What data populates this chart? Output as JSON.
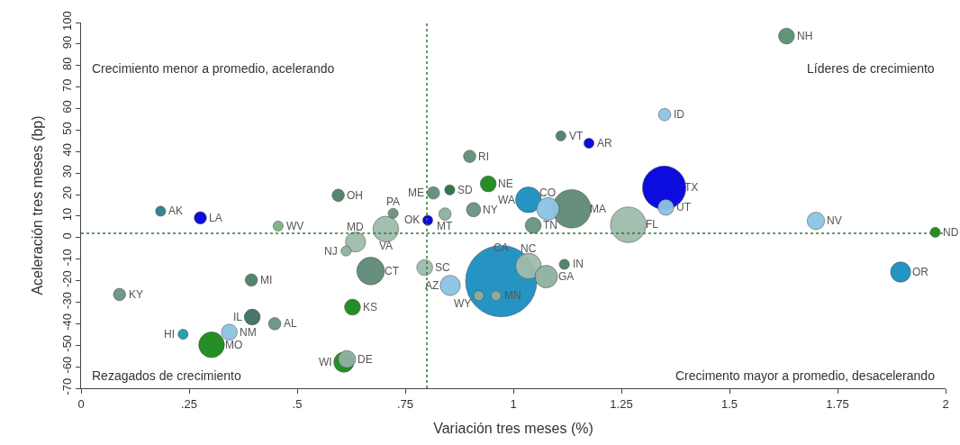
{
  "chart_data": {
    "type": "bubble",
    "xlabel": "Variación tres meses (%)",
    "ylabel": "Aceleración tres meses (bp)",
    "x": [
      1.632,
      1.35,
      1.11,
      1.175,
      0.899,
      0.942,
      0.815,
      0.853,
      0.908,
      0.842,
      0.802,
      1.035,
      1.08,
      1.135,
      1.349,
      1.353,
      1.046,
      1.266,
      1.7,
      1.976,
      1.896,
      1.118,
      1.035,
      1.076,
      0.972,
      0.854,
      0.795,
      0.67,
      0.635,
      0.613,
      0.705,
      0.722,
      0.456,
      0.595,
      0.184,
      0.276,
      0.394,
      0.089,
      0.628,
      0.396,
      0.448,
      0.343,
      0.236,
      0.302,
      0.615,
      0.608,
      0.92,
      0.96
    ],
    "values": [
      93.7,
      57.2,
      47.3,
      43.9,
      37.8,
      25.0,
      20.8,
      22.2,
      13.0,
      11.0,
      8.1,
      17.6,
      13.4,
      13.4,
      23.2,
      14.1,
      5.7,
      6.0,
      7.8,
      2.5,
      -16.0,
      -12.4,
      -13.2,
      -18.1,
      -20.2,
      -22.2,
      -13.9,
      -15.5,
      -2.0,
      -6.2,
      4.0,
      11.3,
      5.4,
      19.7,
      12.3,
      9.2,
      -19.7,
      -26.4,
      -32.3,
      -36.9,
      -40.0,
      -43.9,
      -44.9,
      -49.8,
      -56.5,
      -57.9,
      -27.0,
      -27.0
    ],
    "sizes": [
      0.05,
      0.03,
      0.02,
      0.02,
      0.03,
      0.05,
      0.03,
      0.02,
      0.04,
      0.03,
      0.02,
      0.13,
      0.1,
      0.29,
      0.37,
      0.05,
      0.05,
      0.25,
      0.06,
      0.02,
      0.08,
      0.02,
      0.13,
      0.1,
      1,
      0.08,
      0.05,
      0.15,
      0.08,
      0.02,
      0.13,
      0.02,
      0.02,
      0.03,
      0.02,
      0.03,
      0.03,
      0.03,
      0.05,
      0.05,
      0.03,
      0.05,
      0.02,
      0.13,
      0.06,
      0.08,
      0.02,
      0.02
    ],
    "colors": [
      "#5a9070",
      "#8cc4e3",
      "#4e7f66",
      "#0000dd",
      "#5f8f78",
      "#1a8a1a",
      "#5f8f78",
      "#2e6e40",
      "#6a9280",
      "#8fb0a0",
      "#0000dd",
      "#1b8fc0",
      "#8cc4e3",
      "#5f8a78",
      "#0000dd",
      "#8cc4e3",
      "#6a9280",
      "#9fbcab",
      "#8cc4e3",
      "#1a8a1a",
      "#1b8fc0",
      "#4e7f66",
      "#9fbcab",
      "#8fb0a0",
      "#1b8fc0",
      "#8cc4e3",
      "#9fbcab",
      "#5f8a78",
      "#9fbcab",
      "#8fb0a0",
      "#9fbcab",
      "#6a9280",
      "#7fb07f",
      "#4e7f66",
      "#2a7f8a",
      "#0000dd",
      "#4e7f66",
      "#6a9280",
      "#1a8a1a",
      "#3f6e66",
      "#6a9280",
      "#8cc4e3",
      "#1a9aaa",
      "#1a8a1a",
      "#8fb0a0",
      "#1a8a1a",
      "#8fb0a0",
      "#8fb0a0"
    ],
    "annotations": [
      "Crecimiento menor a promedio, acelerando",
      "Líderes de crecimiento",
      "Rezagados de crecimiento",
      "Crecimento mayor a promedio, desacelerando",
      {
        "text": "NH",
        "x": 1.632,
        "y": 93.7
      },
      {
        "text": "ID",
        "x": 1.35,
        "y": 57.2
      },
      {
        "text": "VT",
        "x": 1.11,
        "y": 47.3
      },
      {
        "text": "AR",
        "x": 1.175,
        "y": 43.9
      },
      {
        "text": "RI",
        "x": 0.899,
        "y": 37.8
      },
      {
        "text": "NE",
        "x": 0.942,
        "y": 25.0
      },
      {
        "text": "ME",
        "x": 0.815,
        "y": 20.8
      },
      {
        "text": "SD",
        "x": 0.853,
        "y": 22.2
      },
      {
        "text": "NY",
        "x": 0.908,
        "y": 13.0
      },
      {
        "text": "MT",
        "x": 0.842,
        "y": 11.0
      },
      {
        "text": "OK",
        "x": 0.802,
        "y": 8.1
      },
      {
        "text": "WA",
        "x": 1.035,
        "y": 17.6
      },
      {
        "text": "CO",
        "x": 1.08,
        "y": 13.4
      },
      {
        "text": "MA",
        "x": 1.135,
        "y": 13.4
      },
      {
        "text": "TX",
        "x": 1.349,
        "y": 23.2
      },
      {
        "text": "UT",
        "x": 1.353,
        "y": 14.1
      },
      {
        "text": "TN",
        "x": 1.046,
        "y": 5.7
      },
      {
        "text": "FL",
        "x": 1.266,
        "y": 6.0
      },
      {
        "text": "NV",
        "x": 1.7,
        "y": 7.8
      },
      {
        "text": "ND",
        "x": 1.976,
        "y": 2.5
      },
      {
        "text": "OR",
        "x": 1.896,
        "y": -16.0
      },
      {
        "text": "IN",
        "x": 1.118,
        "y": -12.4
      },
      {
        "text": "NC",
        "x": 1.035,
        "y": -13.2
      },
      {
        "text": "GA",
        "x": 1.076,
        "y": -18.1
      },
      {
        "text": "CA",
        "x": 0.972,
        "y": -20.2
      },
      {
        "text": "AZ",
        "x": 0.854,
        "y": -22.2
      },
      {
        "text": "SC",
        "x": 0.795,
        "y": -13.9
      },
      {
        "text": "CT",
        "x": 0.67,
        "y": -15.5
      },
      {
        "text": "MD",
        "x": 0.635,
        "y": -2.0
      },
      {
        "text": "NJ",
        "x": 0.613,
        "y": -6.2
      },
      {
        "text": "VA",
        "x": 0.705,
        "y": 4.0
      },
      {
        "text": "PA",
        "x": 0.722,
        "y": 11.3
      },
      {
        "text": "WV",
        "x": 0.456,
        "y": 5.4
      },
      {
        "text": "OH",
        "x": 0.595,
        "y": 19.7
      },
      {
        "text": "AK",
        "x": 0.184,
        "y": 12.3
      },
      {
        "text": "LA",
        "x": 0.276,
        "y": 9.2
      },
      {
        "text": "MI",
        "x": 0.394,
        "y": -19.7
      },
      {
        "text": "KY",
        "x": 0.089,
        "y": -26.4
      },
      {
        "text": "KS",
        "x": 0.628,
        "y": -32.3
      },
      {
        "text": "IL",
        "x": 0.396,
        "y": -36.9
      },
      {
        "text": "AL",
        "x": 0.448,
        "y": -40.0
      },
      {
        "text": "NM",
        "x": 0.343,
        "y": -43.9
      },
      {
        "text": "HI",
        "x": 0.236,
        "y": -44.9
      },
      {
        "text": "MO",
        "x": 0.302,
        "y": -49.8
      },
      {
        "text": "DE",
        "x": 0.615,
        "y": -56.5
      },
      {
        "text": "WI",
        "x": 0.608,
        "y": -57.9
      },
      {
        "text": "WY",
        "x": 0.92,
        "y": -27.0
      },
      {
        "text": "MN",
        "x": 0.96,
        "y": -27.0
      }
    ],
    "xlim": [
      0,
      2
    ],
    "ylim": [
      -70,
      100
    ],
    "xticks": [
      0,
      {
        "value": 0.25,
        "label": ".25"
      },
      {
        "value": 0.5,
        "label": ".5"
      },
      {
        "value": 0.75,
        "label": ".75"
      },
      1,
      1.25,
      1.5,
      1.75,
      2
    ],
    "yticks": [
      -70,
      -60,
      -50,
      -40,
      -30,
      -20,
      -10,
      0,
      10,
      20,
      30,
      40,
      50,
      60,
      70,
      80,
      90,
      100
    ],
    "ref_lines": [
      {
        "axis": "x",
        "value": 0.8,
        "color": "#2e7d32",
        "line_style": "dotted"
      },
      {
        "axis": "y",
        "value": 2,
        "color": "#2e7d32",
        "line_style": "dotted"
      }
    ],
    "grid": false
  }
}
